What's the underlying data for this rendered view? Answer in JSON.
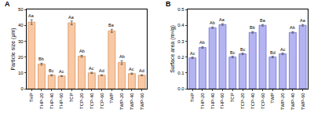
{
  "chart_data": [
    {
      "type": "bar",
      "title": "A",
      "y_label": "Particle size (μm)",
      "categories": [
        "THP",
        "THP-20",
        "THP-40",
        "THP-60",
        "TCP",
        "TCP-20",
        "TCP-40",
        "TCP-60",
        "TWP",
        "TWP-20",
        "TWP-40",
        "TWP-60"
      ],
      "values": [
        42,
        15.5,
        8.5,
        8,
        41.5,
        20.5,
        10,
        8.5,
        36.5,
        16.5,
        9.5,
        8.5
      ],
      "errors": [
        1.5,
        0.6,
        0.4,
        0.3,
        1.2,
        0.6,
        0.4,
        0.3,
        1.0,
        1.2,
        0.4,
        0.3
      ],
      "annotations": [
        "Aa",
        "Bb",
        "Bc",
        "Ac",
        "Aa",
        "Ab",
        "Ac",
        "Ad",
        "Ba",
        "Ab",
        "Ac",
        "Ad"
      ],
      "color": "#f8c9a4",
      "ylim": [
        0,
        50
      ],
      "yticks": [
        0,
        10,
        20,
        30,
        40,
        50
      ],
      "grid": false
    },
    {
      "type": "bar",
      "title": "B",
      "y_label": "Surface area (m²/g)",
      "categories": [
        "THP",
        "THP-20",
        "THP-40",
        "THP-60",
        "TCP",
        "TCP-20",
        "TCP-40",
        "TCP-60",
        "TWP",
        "TWP-20",
        "TWP-40",
        "TWP-60"
      ],
      "values": [
        0.195,
        0.26,
        0.385,
        0.405,
        0.2,
        0.22,
        0.355,
        0.4,
        0.2,
        0.22,
        0.355,
        0.4
      ],
      "errors": [
        0.005,
        0.005,
        0.005,
        0.005,
        0.005,
        0.005,
        0.005,
        0.005,
        0.005,
        0.005,
        0.005,
        0.005
      ],
      "annotations": [
        "Ac",
        "Ab",
        "Ab",
        "Aa",
        "Bc",
        "Bc",
        "Bb",
        "Ba",
        "Bd",
        "Ac",
        "Ab",
        "Aa"
      ],
      "color": "#b4b4f2",
      "ylim": [
        0,
        0.5
      ],
      "yticks": [
        {
          "value": 0,
          "label": "0.0"
        },
        0.1,
        0.2,
        0.3,
        0.4,
        0.5
      ],
      "grid": false
    }
  ]
}
